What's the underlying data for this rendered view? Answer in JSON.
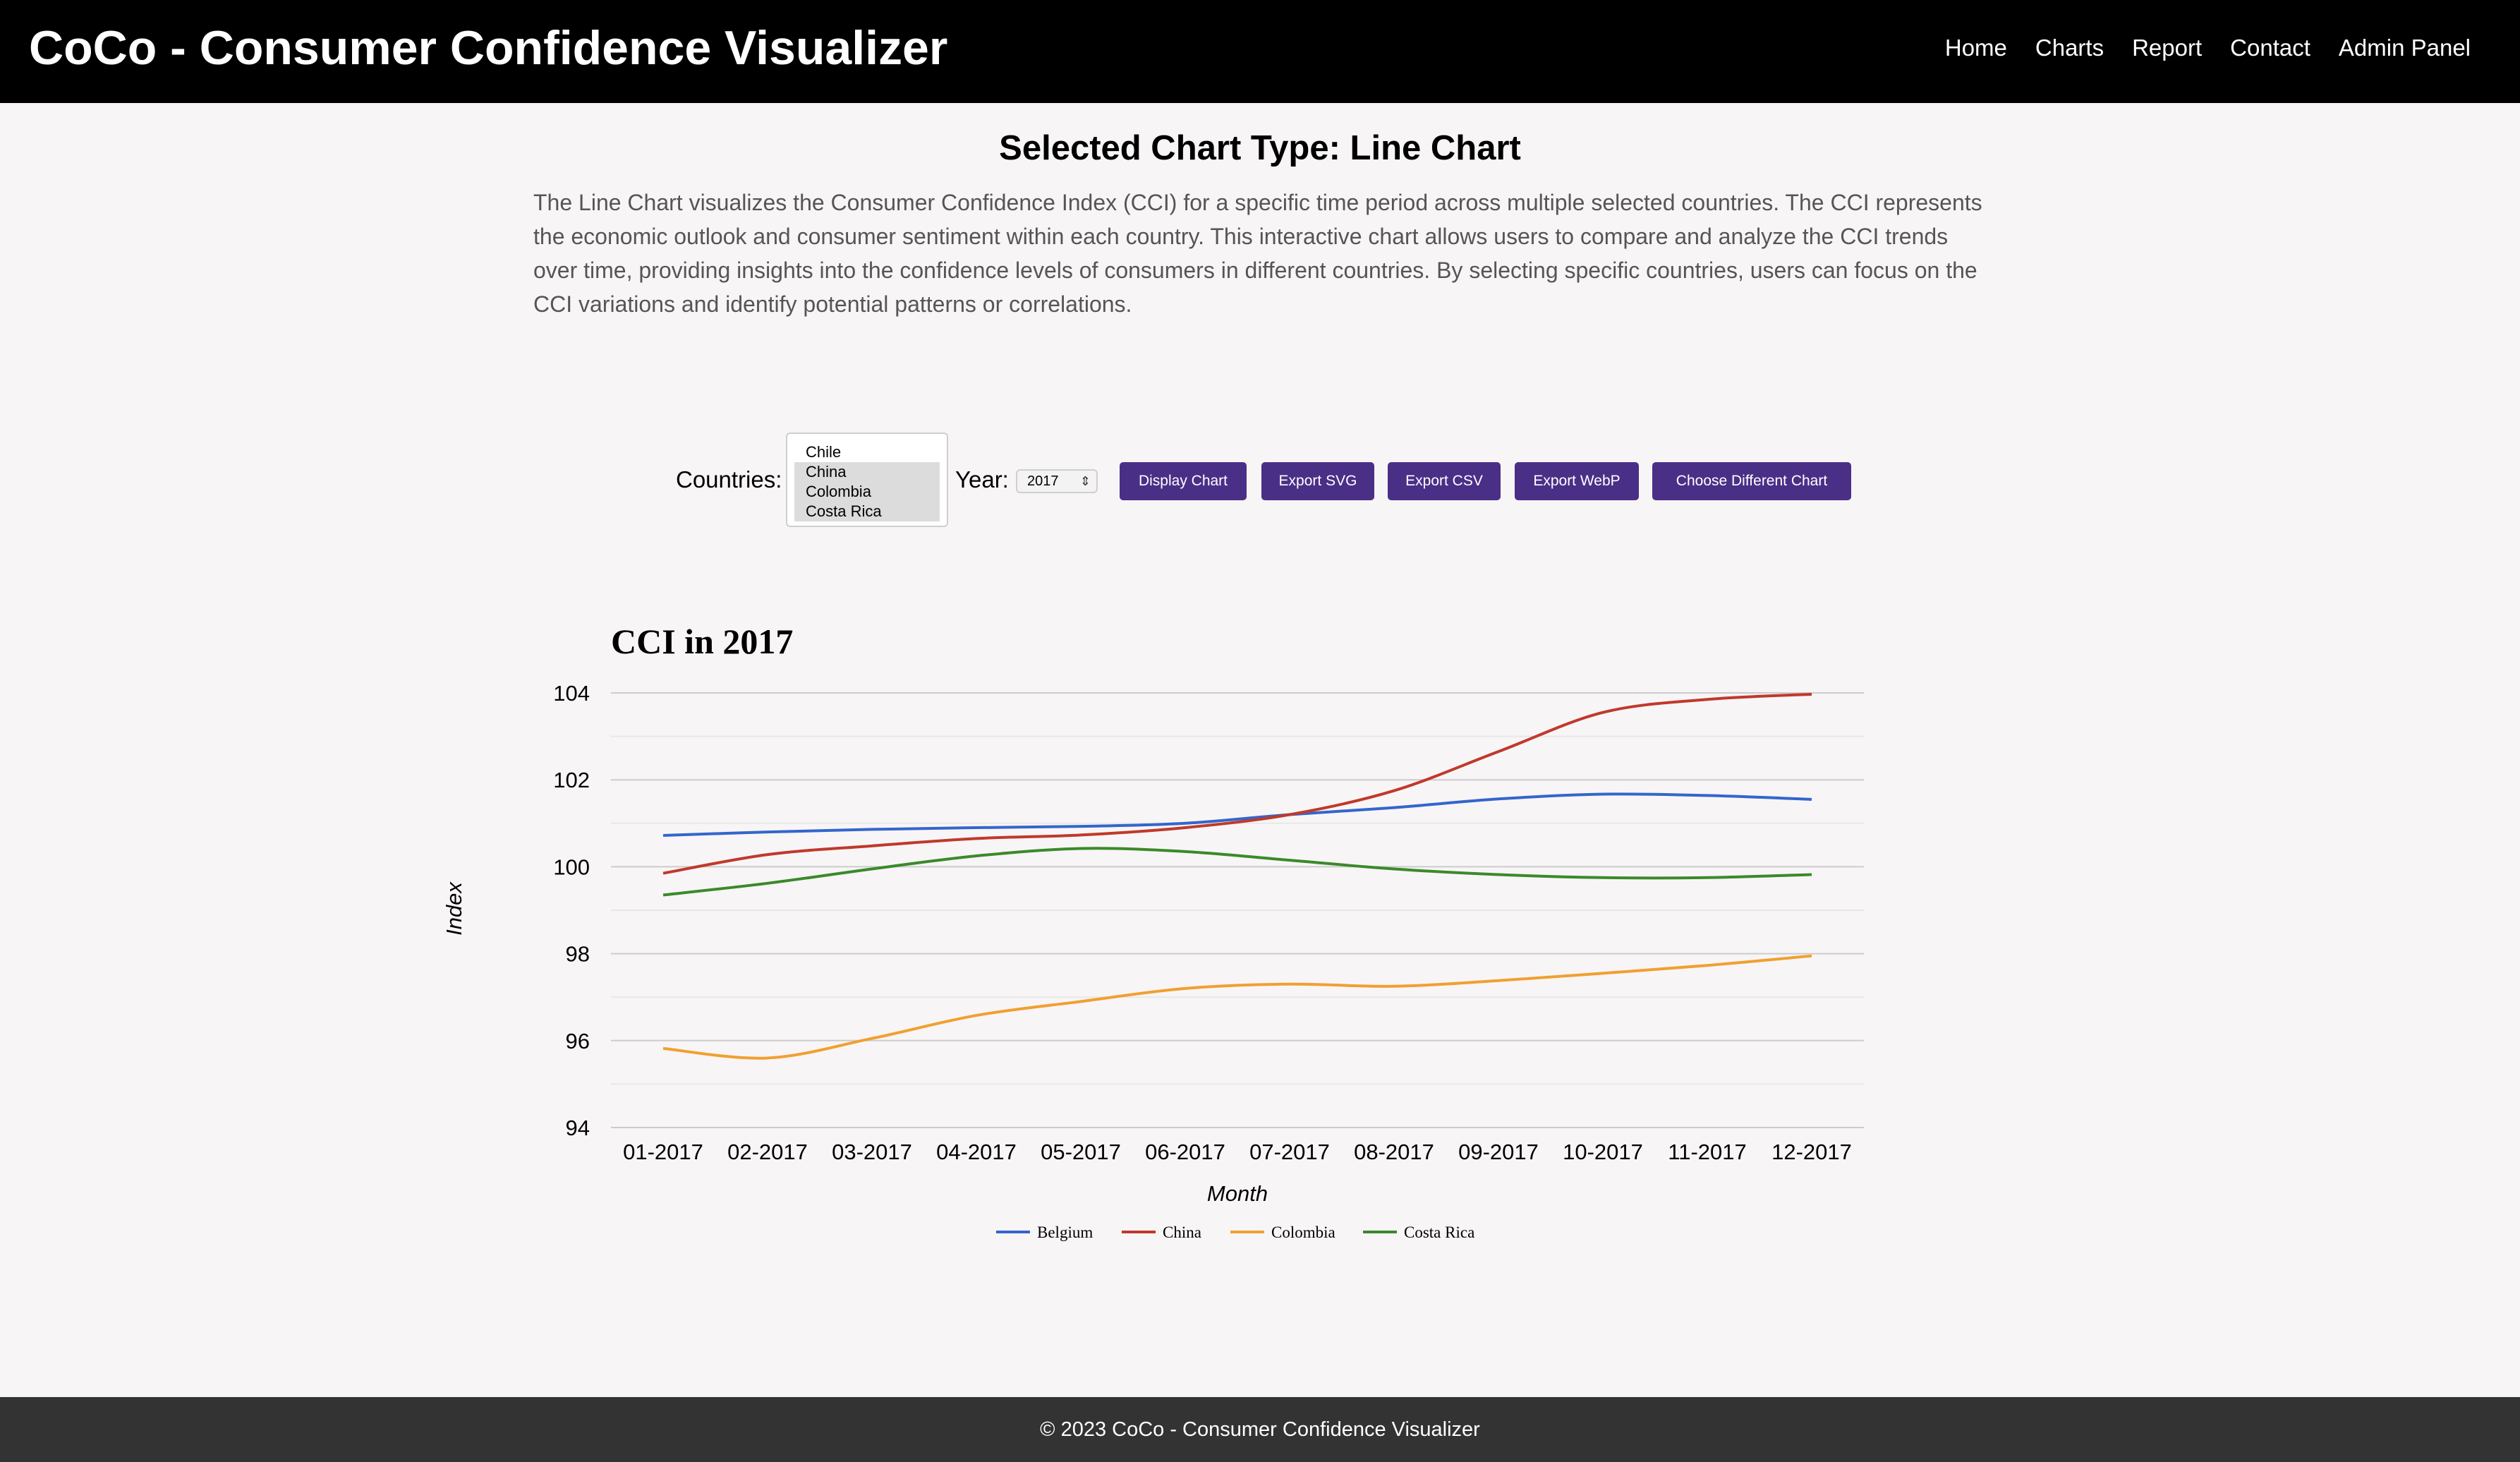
{
  "header": {
    "title": "CoCo - Consumer Confidence Visualizer",
    "nav": [
      "Home",
      "Charts",
      "Report",
      "Contact",
      "Admin Panel"
    ]
  },
  "main": {
    "heading": "Selected Chart Type: Line Chart",
    "description": "The Line Chart visualizes the Consumer Confidence Index (CCI) for a specific time period across multiple selected countries. The CCI represents the economic outlook and consumer sentiment within each country. This interactive chart allows users to compare and analyze the CCI trends over time, providing insights into the confidence levels of consumers in different countries. By selecting specific countries, users can focus on the CCI variations and identify potential patterns or correlations."
  },
  "controls": {
    "countries_label": "Countries:",
    "countries": [
      {
        "name": "Chile",
        "selected": false
      },
      {
        "name": "China",
        "selected": true
      },
      {
        "name": "Colombia",
        "selected": true
      },
      {
        "name": "Costa Rica",
        "selected": true
      }
    ],
    "year_label": "Year:",
    "year_value": "2017",
    "buttons": [
      "Display Chart",
      "Export SVG",
      "Export CSV",
      "Export WebP",
      "Choose Different Chart"
    ],
    "button_color": "#4a2f87"
  },
  "chart_data": {
    "type": "line",
    "title": "CCI in 2017",
    "xlabel": "Month",
    "ylabel": "Index",
    "ylim": [
      94,
      104
    ],
    "yticks": [
      94,
      96,
      98,
      100,
      102,
      104
    ],
    "grid": true,
    "legend_position": "bottom",
    "categories": [
      "01-2017",
      "02-2017",
      "03-2017",
      "04-2017",
      "05-2017",
      "06-2017",
      "07-2017",
      "08-2017",
      "09-2017",
      "10-2017",
      "11-2017",
      "12-2017"
    ],
    "series": [
      {
        "name": "Belgium",
        "color": "#3366cc",
        "values": [
          100.72,
          100.8,
          100.86,
          100.9,
          100.93,
          101.0,
          101.2,
          101.36,
          101.56,
          101.67,
          101.64,
          101.55
        ]
      },
      {
        "name": "China",
        "color": "#c0392b",
        "values": [
          99.85,
          100.28,
          100.48,
          100.65,
          100.73,
          100.9,
          101.2,
          101.75,
          102.65,
          103.55,
          103.85,
          103.97
        ]
      },
      {
        "name": "Colombia",
        "color": "#f0a030",
        "values": [
          95.82,
          95.6,
          96.05,
          96.58,
          96.9,
          97.2,
          97.3,
          97.25,
          97.38,
          97.55,
          97.73,
          97.95
        ]
      },
      {
        "name": "Costa Rica",
        "color": "#3a8a2a",
        "values": [
          99.35,
          99.62,
          99.95,
          100.25,
          100.42,
          100.35,
          100.15,
          99.95,
          99.82,
          99.75,
          99.75,
          99.82
        ]
      }
    ]
  },
  "footer": {
    "text": "© 2023 CoCo - Consumer Confidence Visualizer"
  }
}
